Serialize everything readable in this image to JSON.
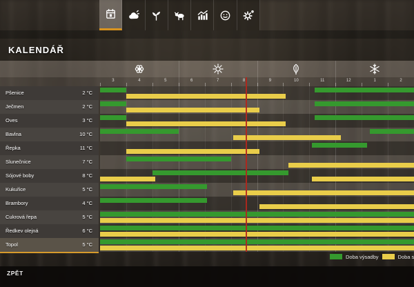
{
  "window": {
    "title": "KALENDÁŘ",
    "back_label": "ZPĚT"
  },
  "nav_tabs": [
    {
      "name": "calendar",
      "selected": true
    },
    {
      "name": "weather",
      "selected": false
    },
    {
      "name": "plant",
      "selected": false
    },
    {
      "name": "animals",
      "selected": false
    },
    {
      "name": "statistics",
      "selected": false
    },
    {
      "name": "help",
      "selected": false
    },
    {
      "name": "settings",
      "selected": false
    }
  ],
  "legend": {
    "planting_label": "Doba výsadby",
    "harvest_label": "Doba sklizně"
  },
  "colors": {
    "planting_green": "#35992e",
    "harvest_yellow": "#e9cd4a",
    "accent_orange": "#d9941f",
    "current_day_red": "#b3261c"
  },
  "calendar": {
    "seasons": [
      "spring",
      "summer",
      "autumn",
      "winter"
    ],
    "months": [
      "3",
      "4",
      "5",
      "6",
      "7",
      "8",
      "9",
      "10",
      "11",
      "12",
      "1",
      "2"
    ],
    "current_day_position": 5.57,
    "crops": [
      {
        "name": "Pšenice",
        "temp": "2 °C",
        "plant": [
          [
            0,
            1
          ],
          [
            8.2,
            12
          ]
        ],
        "harvest": [
          [
            1,
            7.1
          ]
        ],
        "selected": false
      },
      {
        "name": "Ječmen",
        "temp": "2 °C",
        "plant": [
          [
            0,
            1
          ],
          [
            8.2,
            12
          ]
        ],
        "harvest": [
          [
            1,
            6.1
          ]
        ],
        "selected": false
      },
      {
        "name": "Oves",
        "temp": "3 °C",
        "plant": [
          [
            0,
            1
          ],
          [
            8.2,
            12
          ]
        ],
        "harvest": [
          [
            1,
            7.1
          ]
        ],
        "selected": false
      },
      {
        "name": "Bavlna",
        "temp": "10 °C",
        "plant": [
          [
            0,
            3
          ],
          [
            10.3,
            12
          ]
        ],
        "harvest": [
          [
            5.1,
            9.2
          ]
        ],
        "selected": false
      },
      {
        "name": "Řepka",
        "temp": "11 °C",
        "plant": [
          [
            8.1,
            10.2
          ]
        ],
        "harvest": [
          [
            1,
            6.1
          ]
        ],
        "selected": false
      },
      {
        "name": "Slunečnice",
        "temp": "7 °C",
        "plant": [
          [
            1,
            5
          ]
        ],
        "harvest": [
          [
            7.2,
            12
          ]
        ],
        "selected": false
      },
      {
        "name": "Sójové boby",
        "temp": "8 °C",
        "plant": [
          [
            2,
            7.2
          ]
        ],
        "harvest": [
          [
            0,
            2.1
          ],
          [
            8.1,
            12
          ]
        ],
        "selected": false
      },
      {
        "name": "Kukuřice",
        "temp": "5 °C",
        "plant": [
          [
            0,
            4.1
          ]
        ],
        "harvest": [
          [
            5.1,
            12
          ]
        ],
        "selected": false
      },
      {
        "name": "Brambory",
        "temp": "4 °C",
        "plant": [
          [
            0,
            4.1
          ]
        ],
        "harvest": [
          [
            6.1,
            12
          ]
        ],
        "selected": false
      },
      {
        "name": "Cukrová řepa",
        "temp": "5 °C",
        "plant": [
          [
            0,
            12
          ]
        ],
        "harvest": [
          [
            0,
            12
          ]
        ],
        "selected": false
      },
      {
        "name": "Ředkev olejná",
        "temp": "6 °C",
        "plant": [
          [
            0,
            12
          ]
        ],
        "harvest": [
          [
            0,
            12
          ]
        ],
        "selected": false
      },
      {
        "name": "Topol",
        "temp": "5 °C",
        "plant": [
          [
            0,
            12
          ]
        ],
        "harvest": [
          [
            0,
            12
          ]
        ],
        "selected": true
      }
    ]
  }
}
